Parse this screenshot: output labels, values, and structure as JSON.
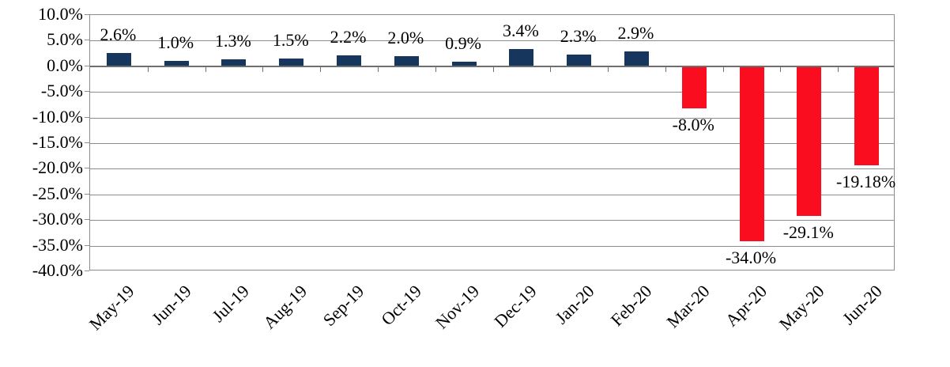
{
  "chart_data": {
    "type": "bar",
    "categories": [
      "May-19",
      "Jun-19",
      "Jul-19",
      "Aug-19",
      "Sep-19",
      "Oct-19",
      "Nov-19",
      "Dec-19",
      "Jan-20",
      "Feb-20",
      "Mar-20",
      "Apr-20",
      "May-20",
      "Jun-20"
    ],
    "values": [
      2.6,
      1.0,
      1.3,
      1.5,
      2.2,
      2.0,
      0.9,
      3.4,
      2.3,
      2.9,
      -8.0,
      -34.0,
      -29.1,
      -19.18
    ],
    "data_labels": [
      "2.6%",
      "1.0%",
      "1.3%",
      "1.5%",
      "2.2%",
      "2.0%",
      "0.9%",
      "3.4%",
      "2.3%",
      "2.9%",
      "-8.0%",
      "-34.0%",
      "-29.1%",
      "-19.18%"
    ],
    "title": "",
    "xlabel": "",
    "ylabel": "",
    "ylim": [
      -40,
      10
    ],
    "ytick_step": 5,
    "yticks": [
      "10.0%",
      "5.0%",
      "0.0%",
      "-5.0%",
      "-10.0%",
      "-15.0%",
      "-20.0%",
      "-25.0%",
      "-30.0%",
      "-35.0%",
      "-40.0%"
    ],
    "grid": true,
    "legend": false,
    "colors": {
      "positive_bar": "#17365D",
      "negative_bar": "#FA0D1F",
      "gridline": "#8C8C8C",
      "zero_axis": "#6E6E6E",
      "plot_border": "#8C8C8C",
      "text": "#000000",
      "background": "#FFFFFF"
    }
  }
}
